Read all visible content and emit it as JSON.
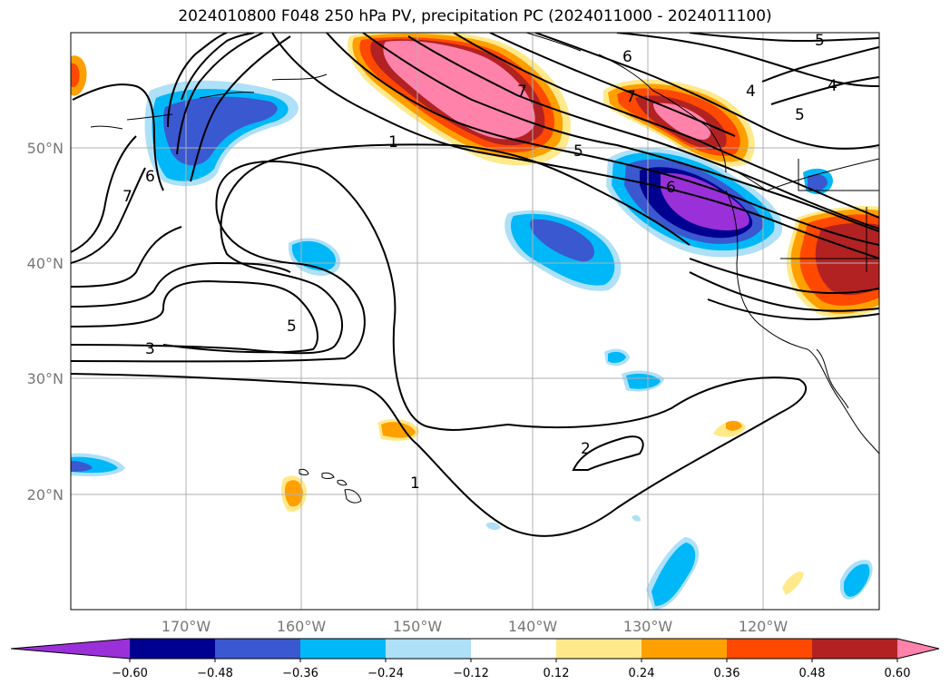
{
  "title": "2024010800 F048 250 hPa PV, precipitation PC (2024011000 - 2024011100)",
  "map": {
    "projection": "cylindrical",
    "lon_range": [
      -180,
      -110
    ],
    "lat_range": [
      10,
      60
    ],
    "grid": true,
    "lat_labels": [
      "50°N",
      "40°N",
      "30°N",
      "20°N"
    ],
    "lon_labels": [
      "170°W",
      "160°W",
      "150°W",
      "140°W",
      "130°W",
      "120°W"
    ],
    "contour_labels": [
      "1",
      "1",
      "2",
      "3",
      "4",
      "4",
      "5",
      "5",
      "5",
      "5",
      "6",
      "6",
      "6",
      "7",
      "7",
      "7"
    ]
  },
  "colorbar": {
    "ticks": [
      "−0.60",
      "−0.48",
      "−0.36",
      "−0.24",
      "−0.12",
      "0.12",
      "0.24",
      "0.36",
      "0.48",
      "0.60"
    ],
    "colors": [
      "#9a30d8",
      "#000090",
      "#3a58d0",
      "#00b8f8",
      "#aee0f8",
      "#ffffff",
      "#ffe98a",
      "#ffa000",
      "#ff4800",
      "#b22222",
      "#ff82aa"
    ],
    "extend": "both"
  }
}
